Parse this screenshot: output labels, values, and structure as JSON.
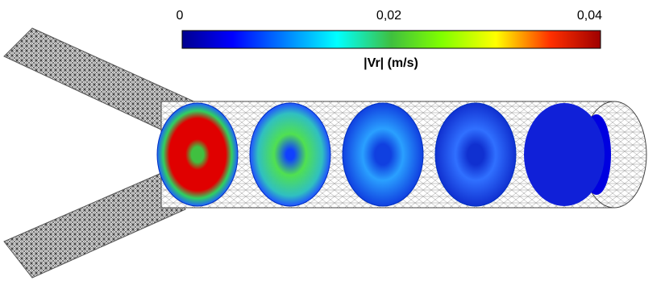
{
  "colorbar": {
    "label": "|Vr| (m/s)",
    "lim": [
      0,
      0.04
    ],
    "ticks": [
      0,
      {
        "value": 0.02,
        "label": "0,02"
      },
      {
        "value": 0.04,
        "label": "0,04"
      }
    ]
  }
}
